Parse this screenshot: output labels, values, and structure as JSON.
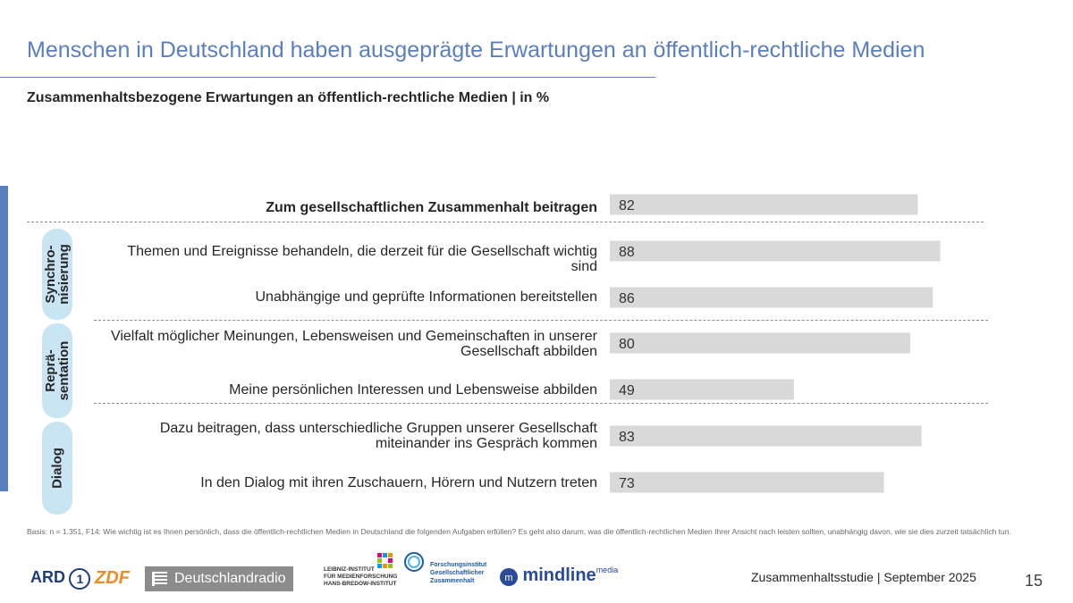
{
  "header": {
    "title": "Menschen in Deutschland haben ausgeprägte Erwartungen an öffentlich-rechtliche Medien",
    "subtitle": "Zusammenhaltsbezogene Erwartungen an öffentlich-rechtliche Medien | in %"
  },
  "groups": {
    "synchro": "Synchro-\nnisierung",
    "repra": "Reprä-\nsentation",
    "dialog": "Dialog"
  },
  "chart_data": {
    "type": "bar",
    "orientation": "horizontal",
    "categories": [
      "Zum gesellschaftlichen Zusammenhalt beitragen",
      "Themen und Ereignisse behandeln, die derzeit für die Gesellschaft wichtig sind",
      "Unabhängige und geprüfte Informationen bereitstellen",
      "Vielfalt möglicher Meinungen, Lebensweisen und Gemeinschaften in unserer Gesellschaft abbilden",
      "Meine persönlichen Interessen und Lebensweise abbilden",
      "Dazu beitragen, dass unterschiedliche Gruppen unserer Gesellschaft miteinander ins Gespräch kommen",
      "In den Dialog mit ihren Zuschauern, Hörern und Nutzern treten"
    ],
    "values": [
      82,
      88,
      86,
      80,
      49,
      83,
      73
    ],
    "xlim": [
      0,
      100
    ],
    "bar_color": "#d9d9d9",
    "title": "Zusammenhaltsbezogene Erwartungen an öffentlich-rechtliche Medien | in %"
  },
  "footnote": "Basis: n = 1.351, F14: Wie wichtig ist es Ihnen persönlich, dass die öffentlich-rechtlichen Medien in Deutschland die folgenden Aufgaben erfüllen? Es geht also darum, was die öffentlich-rechtlichen Medien Ihrer Ansicht nach leisten sollten, unabhängig davon, wie sie dies zurzeit tatsächlich tun.",
  "footer": {
    "study": "Zusammenhaltsstudie | September 2025",
    "page": "15"
  },
  "logos": {
    "ard": "ARD",
    "ard_num": "1",
    "zdf": "ZDF",
    "dlr": "Deutschlandradio",
    "leibniz_1": "LEIBNIZ-INSTITUT",
    "leibniz_2": "FÜR MEDIENFORSCHUNG",
    "leibniz_3": "HANS-BREDOW-INSTITUT",
    "fgz_1": "Forschungsinstitut",
    "fgz_2": "Gesellschaftlicher",
    "fgz_3": "Zusammenhalt",
    "mindline": "mindline",
    "mindline_sub": "media"
  },
  "colors": {
    "accent": "#5b7fbe",
    "pill": "#c9e5f3",
    "bar": "#d9d9d9"
  }
}
